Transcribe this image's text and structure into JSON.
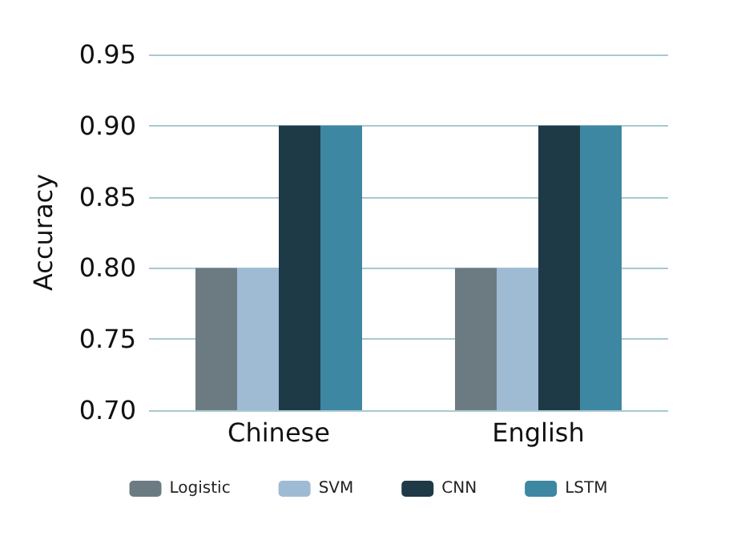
{
  "chart_data": {
    "type": "bar",
    "ylabel": "Accuracy",
    "categories": [
      "Chinese",
      "English"
    ],
    "series": [
      {
        "name": "Logistic",
        "color": "#6c7b82",
        "values": [
          0.8,
          0.8
        ]
      },
      {
        "name": "SVM",
        "color": "#9fbbd4",
        "values": [
          0.8,
          0.8
        ]
      },
      {
        "name": "CNN",
        "color": "#1f3a47",
        "values": [
          0.9,
          0.9
        ]
      },
      {
        "name": "LSTM",
        "color": "#3e87a3",
        "values": [
          0.9,
          0.9
        ]
      }
    ],
    "ylim": [
      0.7,
      0.95
    ],
    "yticks": [
      {
        "value": 0.7,
        "label": "0.70"
      },
      0.75,
      {
        "value": 0.8,
        "label": "0.80"
      },
      0.85,
      {
        "value": 0.9,
        "label": "0.90"
      },
      0.95
    ],
    "grid": "y",
    "legend": "bottom"
  }
}
